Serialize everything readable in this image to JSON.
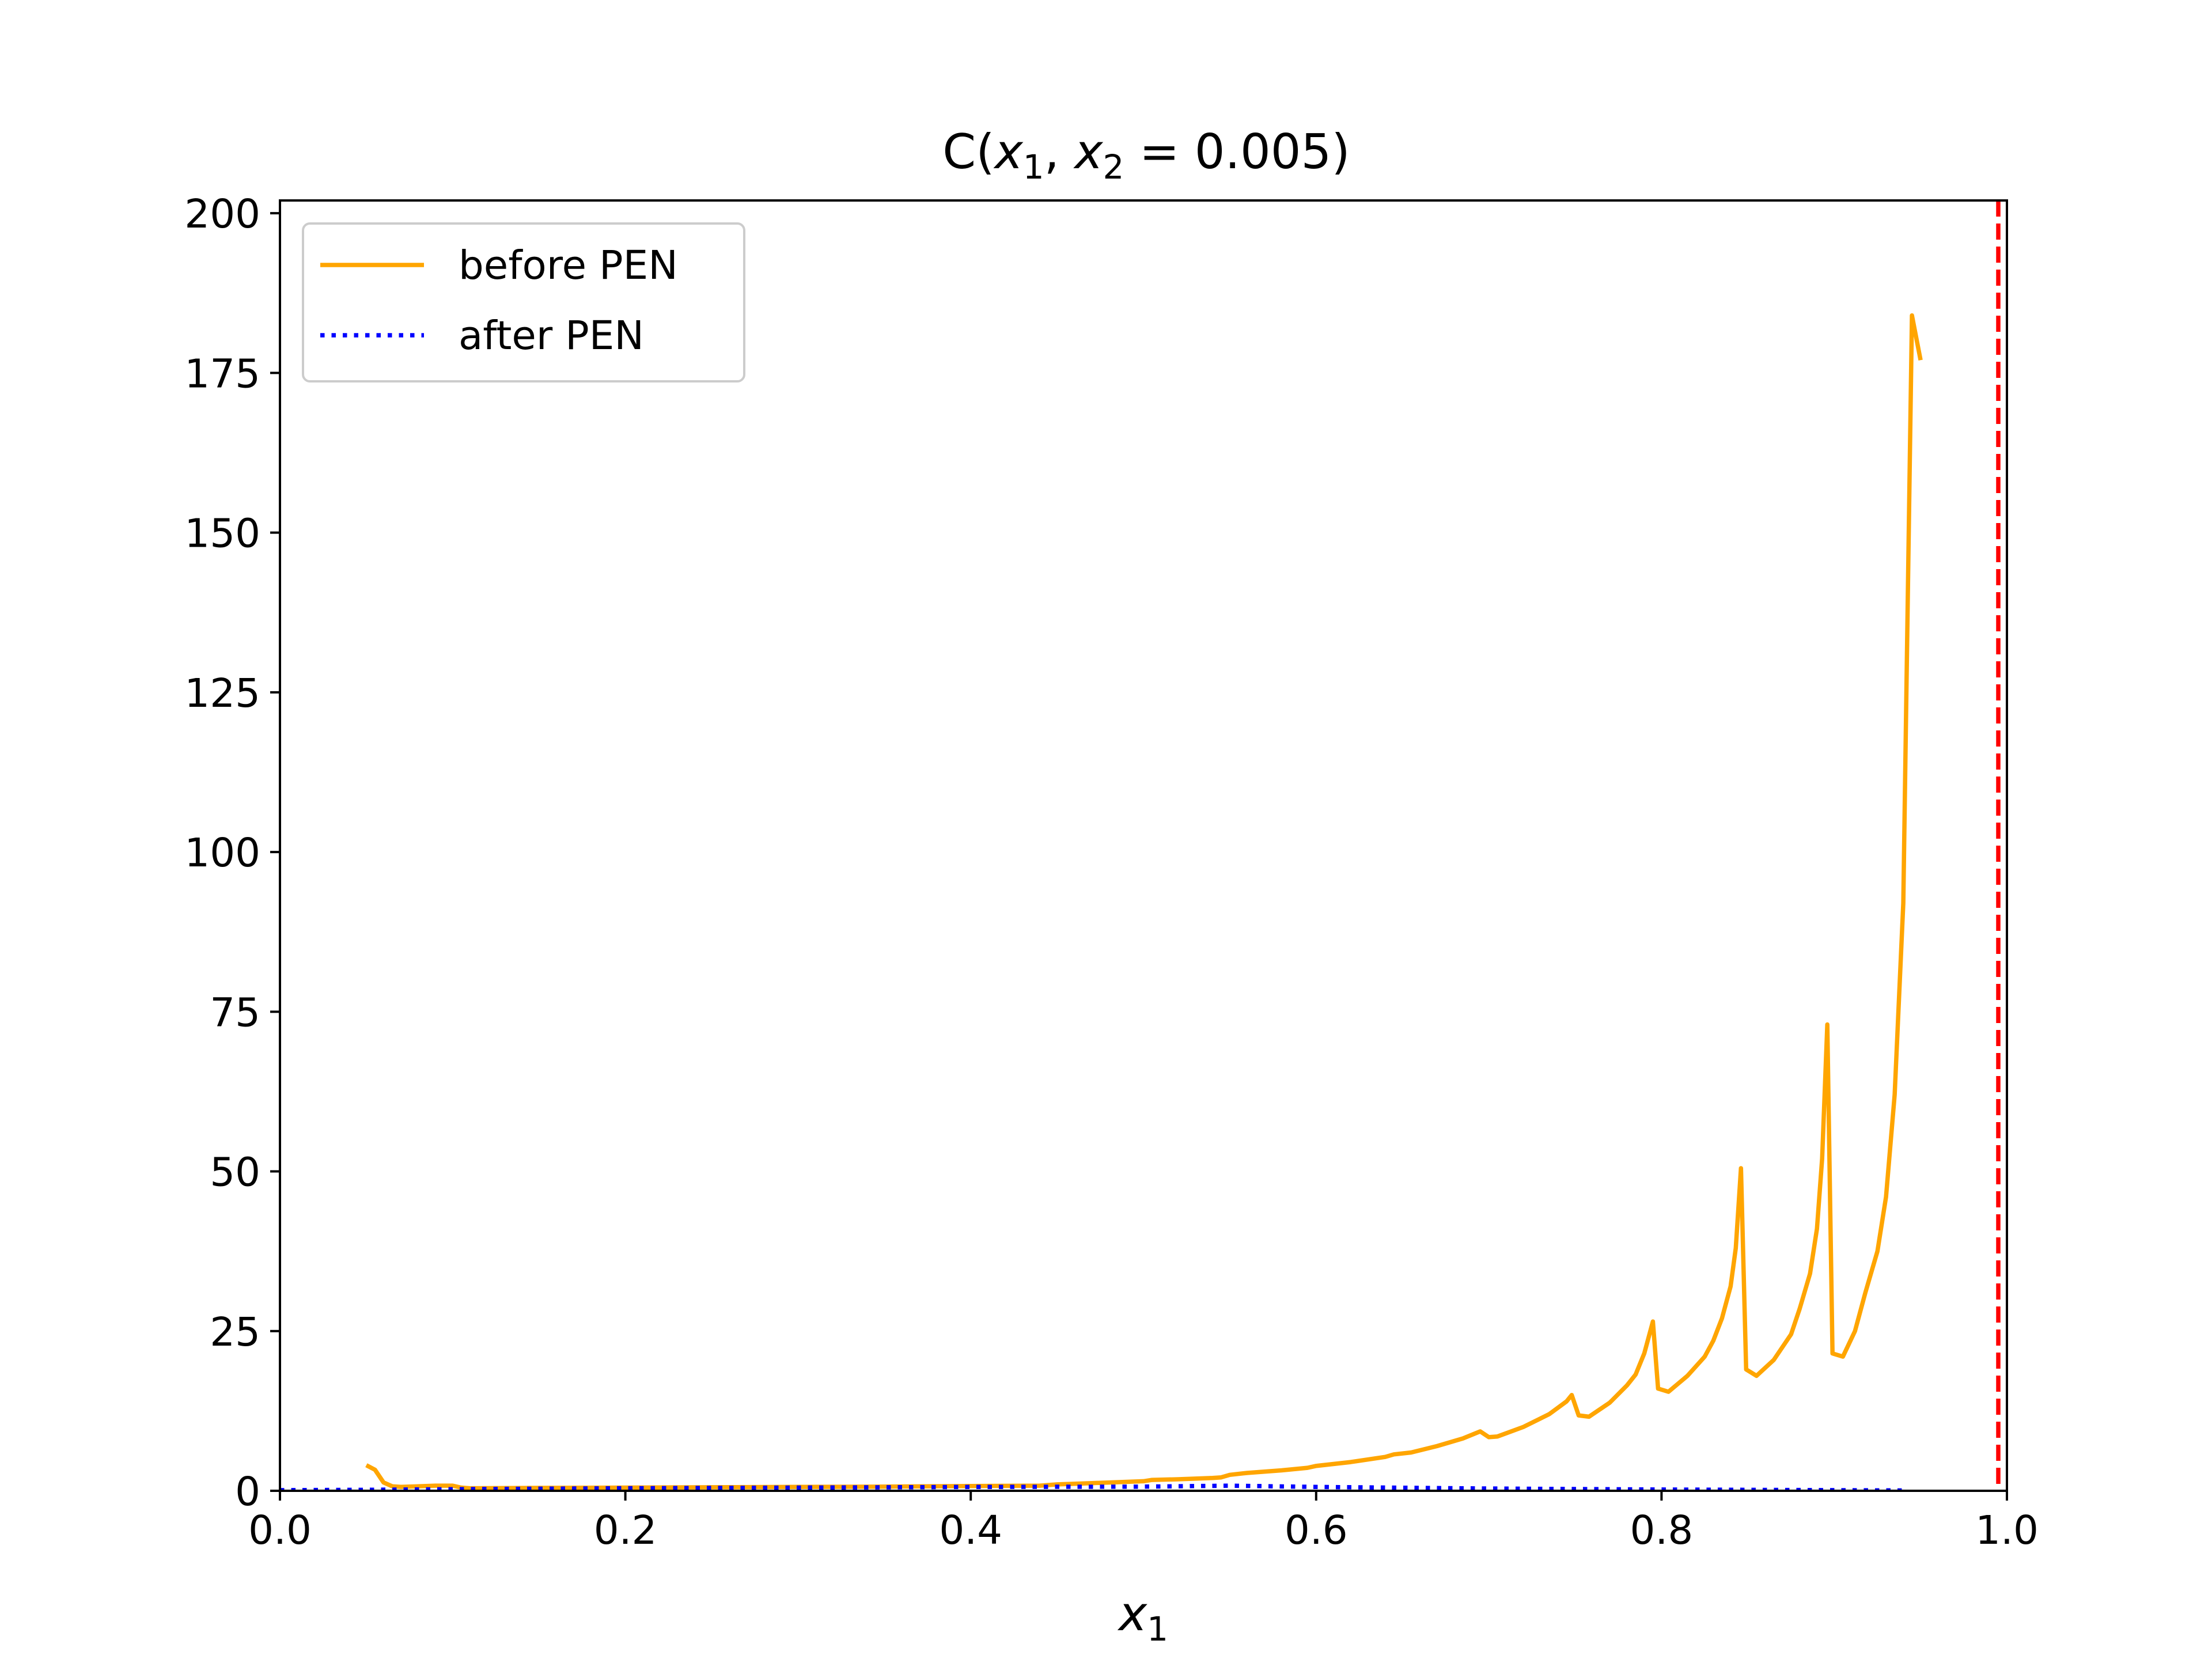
{
  "chart_data": {
    "type": "line",
    "title": "C(x1, x2 = 0.005)",
    "title_parts": {
      "a": "C(",
      "b": "x",
      "b_sub": "1",
      "c": ", ",
      "d": "x",
      "d_sub": "2",
      "e": " = 0.005)"
    },
    "xlabel": "x",
    "xlabel_sub": "1",
    "ylabel": "",
    "xlim": [
      0.0,
      1.0
    ],
    "ylim": [
      0,
      202
    ],
    "x_ticks": [
      {
        "value": 0.0,
        "label": "0.0"
      },
      {
        "value": 0.2,
        "label": "0.2"
      },
      {
        "value": 0.4,
        "label": "0.4"
      },
      {
        "value": 0.6,
        "label": "0.6"
      },
      {
        "value": 0.8,
        "label": "0.8"
      },
      {
        "value": 1.0,
        "label": "1.0"
      }
    ],
    "y_ticks": [
      {
        "value": 0,
        "label": "0"
      },
      {
        "value": 25,
        "label": "25"
      },
      {
        "value": 50,
        "label": "50"
      },
      {
        "value": 75,
        "label": "75"
      },
      {
        "value": 100,
        "label": "100"
      },
      {
        "value": 125,
        "label": "125"
      },
      {
        "value": 150,
        "label": "150"
      },
      {
        "value": 175,
        "label": "175"
      },
      {
        "value": 200,
        "label": "200"
      }
    ],
    "grid": false,
    "legend_position": "upper-left",
    "vline": {
      "x": 0.995,
      "color": "#ff0000",
      "style": "dashed"
    },
    "series": [
      {
        "name": "before PEN",
        "color": "#ffa500",
        "style": "solid",
        "points": [
          [
            0.05,
            4.0
          ],
          [
            0.055,
            3.3
          ],
          [
            0.06,
            1.3
          ],
          [
            0.065,
            0.7
          ],
          [
            0.07,
            0.6
          ],
          [
            0.08,
            0.7
          ],
          [
            0.09,
            0.8
          ],
          [
            0.1,
            0.8
          ],
          [
            0.105,
            0.5
          ],
          [
            0.11,
            0.4
          ],
          [
            0.15,
            0.45
          ],
          [
            0.2,
            0.5
          ],
          [
            0.25,
            0.55
          ],
          [
            0.3,
            0.6
          ],
          [
            0.35,
            0.65
          ],
          [
            0.4,
            0.75
          ],
          [
            0.44,
            0.8
          ],
          [
            0.45,
            1.0
          ],
          [
            0.47,
            1.2
          ],
          [
            0.5,
            1.5
          ],
          [
            0.505,
            1.7
          ],
          [
            0.52,
            1.8
          ],
          [
            0.54,
            2.0
          ],
          [
            0.545,
            2.1
          ],
          [
            0.55,
            2.5
          ],
          [
            0.56,
            2.8
          ],
          [
            0.58,
            3.2
          ],
          [
            0.595,
            3.6
          ],
          [
            0.6,
            3.9
          ],
          [
            0.62,
            4.5
          ],
          [
            0.64,
            5.3
          ],
          [
            0.645,
            5.7
          ],
          [
            0.655,
            6.0
          ],
          [
            0.67,
            7.0
          ],
          [
            0.685,
            8.2
          ],
          [
            0.695,
            9.3
          ],
          [
            0.7,
            8.4
          ],
          [
            0.705,
            8.5
          ],
          [
            0.72,
            10.0
          ],
          [
            0.735,
            12.0
          ],
          [
            0.745,
            14.0
          ],
          [
            0.748,
            15.0
          ],
          [
            0.752,
            11.8
          ],
          [
            0.758,
            11.6
          ],
          [
            0.77,
            13.8
          ],
          [
            0.78,
            16.5
          ],
          [
            0.785,
            18.2
          ],
          [
            0.79,
            21.5
          ],
          [
            0.795,
            26.5
          ],
          [
            0.798,
            16.0
          ],
          [
            0.804,
            15.5
          ],
          [
            0.815,
            18.0
          ],
          [
            0.825,
            21.0
          ],
          [
            0.83,
            23.5
          ],
          [
            0.835,
            27.0
          ],
          [
            0.84,
            32.0
          ],
          [
            0.843,
            38.0
          ],
          [
            0.846,
            50.5
          ],
          [
            0.849,
            19.0
          ],
          [
            0.855,
            18.0
          ],
          [
            0.865,
            20.5
          ],
          [
            0.875,
            24.5
          ],
          [
            0.88,
            28.5
          ],
          [
            0.886,
            34.0
          ],
          [
            0.89,
            41.0
          ],
          [
            0.893,
            52.0
          ],
          [
            0.896,
            73.0
          ],
          [
            0.899,
            21.5
          ],
          [
            0.905,
            21.0
          ],
          [
            0.912,
            25.0
          ],
          [
            0.918,
            31.0
          ],
          [
            0.925,
            37.5
          ],
          [
            0.93,
            46.0
          ],
          [
            0.935,
            62.0
          ],
          [
            0.94,
            92.0
          ],
          [
            0.945,
            184.0
          ],
          [
            0.95,
            177.0
          ]
        ]
      },
      {
        "name": "after PEN",
        "color": "#0000ff",
        "style": "dotted",
        "points": [
          [
            0.0,
            0.1
          ],
          [
            0.05,
            0.15
          ],
          [
            0.1,
            0.25
          ],
          [
            0.2,
            0.4
          ],
          [
            0.3,
            0.5
          ],
          [
            0.4,
            0.6
          ],
          [
            0.5,
            0.65
          ],
          [
            0.55,
            0.8
          ],
          [
            0.6,
            0.6
          ],
          [
            0.7,
            0.35
          ],
          [
            0.8,
            0.2
          ],
          [
            0.9,
            0.1
          ],
          [
            0.94,
            0.05
          ]
        ]
      }
    ]
  }
}
